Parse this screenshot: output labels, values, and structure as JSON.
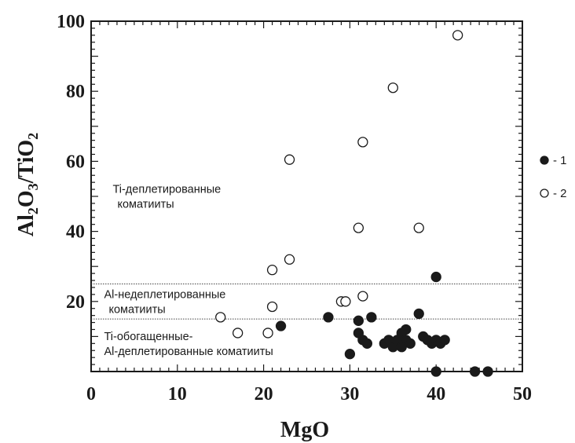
{
  "chart_data": {
    "type": "scatter",
    "xlabel": "MgO",
    "ylabel_parts": [
      "Al",
      "2",
      "O",
      "3",
      "/TiO",
      "2"
    ],
    "xlim": [
      0,
      50
    ],
    "ylim": [
      0,
      100
    ],
    "x_ticks": [
      "0",
      "10",
      "20",
      "30",
      "40",
      "50"
    ],
    "y_ticks": [
      "20",
      "40",
      "60",
      "80",
      "100"
    ],
    "x_tick_values": [
      0,
      10,
      20,
      30,
      40,
      50
    ],
    "y_tick_values": [
      20,
      40,
      60,
      80,
      100
    ],
    "reference_lines": [
      {
        "y": 25,
        "style": "dotted"
      },
      {
        "y": 15,
        "style": "dotted"
      }
    ],
    "region_labels": [
      {
        "lines": [
          "Ti-деплетированные",
          "коматииты"
        ],
        "x": 2.5,
        "y": 51
      },
      {
        "lines": [
          "Al-недеплетированные",
          "коматииты"
        ],
        "x": 1.5,
        "y": 21
      },
      {
        "lines": [
          "Ti-обогащенные-",
          "Al-деплетированные коматииты"
        ],
        "x": 1.5,
        "y": 9
      }
    ],
    "series": [
      {
        "name": "1",
        "marker": "filled",
        "points": [
          [
            22,
            13
          ],
          [
            27.5,
            15.5
          ],
          [
            30,
            5
          ],
          [
            31,
            14.5
          ],
          [
            32.5,
            15.5
          ],
          [
            38,
            16.5
          ],
          [
            40,
            27
          ],
          [
            31,
            11
          ],
          [
            31.5,
            9
          ],
          [
            32,
            8
          ],
          [
            34,
            8
          ],
          [
            34.5,
            9
          ],
          [
            35,
            7
          ],
          [
            35.5,
            9
          ],
          [
            36,
            11
          ],
          [
            36.5,
            9
          ],
          [
            37,
            8
          ],
          [
            38.5,
            10
          ],
          [
            39,
            9
          ],
          [
            39.5,
            8
          ],
          [
            40,
            9
          ],
          [
            40.5,
            8
          ],
          [
            41,
            9
          ],
          [
            36.5,
            12
          ],
          [
            40,
            0
          ],
          [
            44.5,
            0
          ],
          [
            46,
            0
          ],
          [
            36,
            7
          ]
        ]
      },
      {
        "name": "2",
        "marker": "open",
        "points": [
          [
            15,
            15.5
          ],
          [
            17,
            11
          ],
          [
            20.5,
            11
          ],
          [
            21,
            18.5
          ],
          [
            21,
            29
          ],
          [
            23,
            32
          ],
          [
            23,
            60.5
          ],
          [
            29,
            20
          ],
          [
            29.5,
            20
          ],
          [
            31,
            41
          ],
          [
            31.5,
            21.5
          ],
          [
            31.5,
            65.5
          ],
          [
            35,
            81
          ],
          [
            38,
            41
          ],
          [
            42.5,
            96
          ]
        ]
      }
    ],
    "legend": {
      "placement": "right",
      "items": [
        {
          "marker": "filled",
          "label": "- 1"
        },
        {
          "marker": "open",
          "label": "- 2"
        }
      ]
    }
  }
}
